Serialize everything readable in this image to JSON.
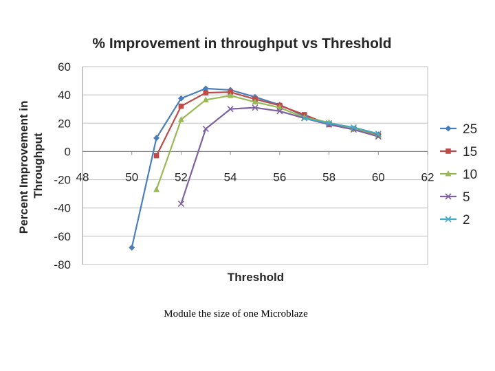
{
  "chart_data": {
    "type": "line",
    "title": "% Improvement in throughput vs Threshold",
    "xlabel": "Threshold",
    "ylabel": "Percent Improvement in Throughput",
    "xlim": [
      48,
      62
    ],
    "ylim": [
      -80,
      60
    ],
    "x_ticks": [
      48,
      50,
      52,
      54,
      56,
      58,
      60,
      62
    ],
    "y_ticks": [
      60,
      40,
      20,
      0,
      -20,
      -40,
      -60,
      -80
    ],
    "grid": "horizontal",
    "legend_position": "right",
    "series": [
      {
        "name": "25",
        "color": "#4a7ebb",
        "marker": "diamond",
        "x": [
          50,
          51,
          52,
          53,
          54,
          55,
          56,
          57,
          58,
          59,
          60
        ],
        "values": [
          -68,
          9.5,
          37.5,
          44.5,
          43.5,
          38.5,
          33,
          25,
          20,
          16,
          12
        ]
      },
      {
        "name": "15",
        "color": "#be4b48",
        "marker": "square",
        "x": [
          51,
          52,
          53,
          54,
          55,
          56,
          57,
          58,
          59,
          60
        ],
        "values": [
          -3,
          32,
          41.5,
          42,
          37,
          32.5,
          26,
          19,
          16,
          11.5
        ]
      },
      {
        "name": "10",
        "color": "#98b954",
        "marker": "triangle",
        "x": [
          51,
          52,
          53,
          54,
          55,
          56,
          57,
          58,
          59,
          60
        ],
        "values": [
          -27,
          22.5,
          36.5,
          39.5,
          35,
          31,
          24,
          20.5,
          16,
          11
        ]
      },
      {
        "name": "5",
        "color": "#7d60a0",
        "marker": "x",
        "x": [
          52,
          53,
          54,
          55,
          56,
          57,
          58,
          59,
          60
        ],
        "values": [
          -37,
          16,
          30,
          31,
          28.5,
          23.5,
          19,
          15.5,
          10.5
        ]
      },
      {
        "name": "2",
        "color": "#46aac5",
        "marker": "x",
        "x": [
          57,
          58,
          59,
          60
        ],
        "values": [
          23.5,
          20,
          17,
          12.5
        ]
      }
    ]
  },
  "caption": "Module the size of one Microblaze"
}
